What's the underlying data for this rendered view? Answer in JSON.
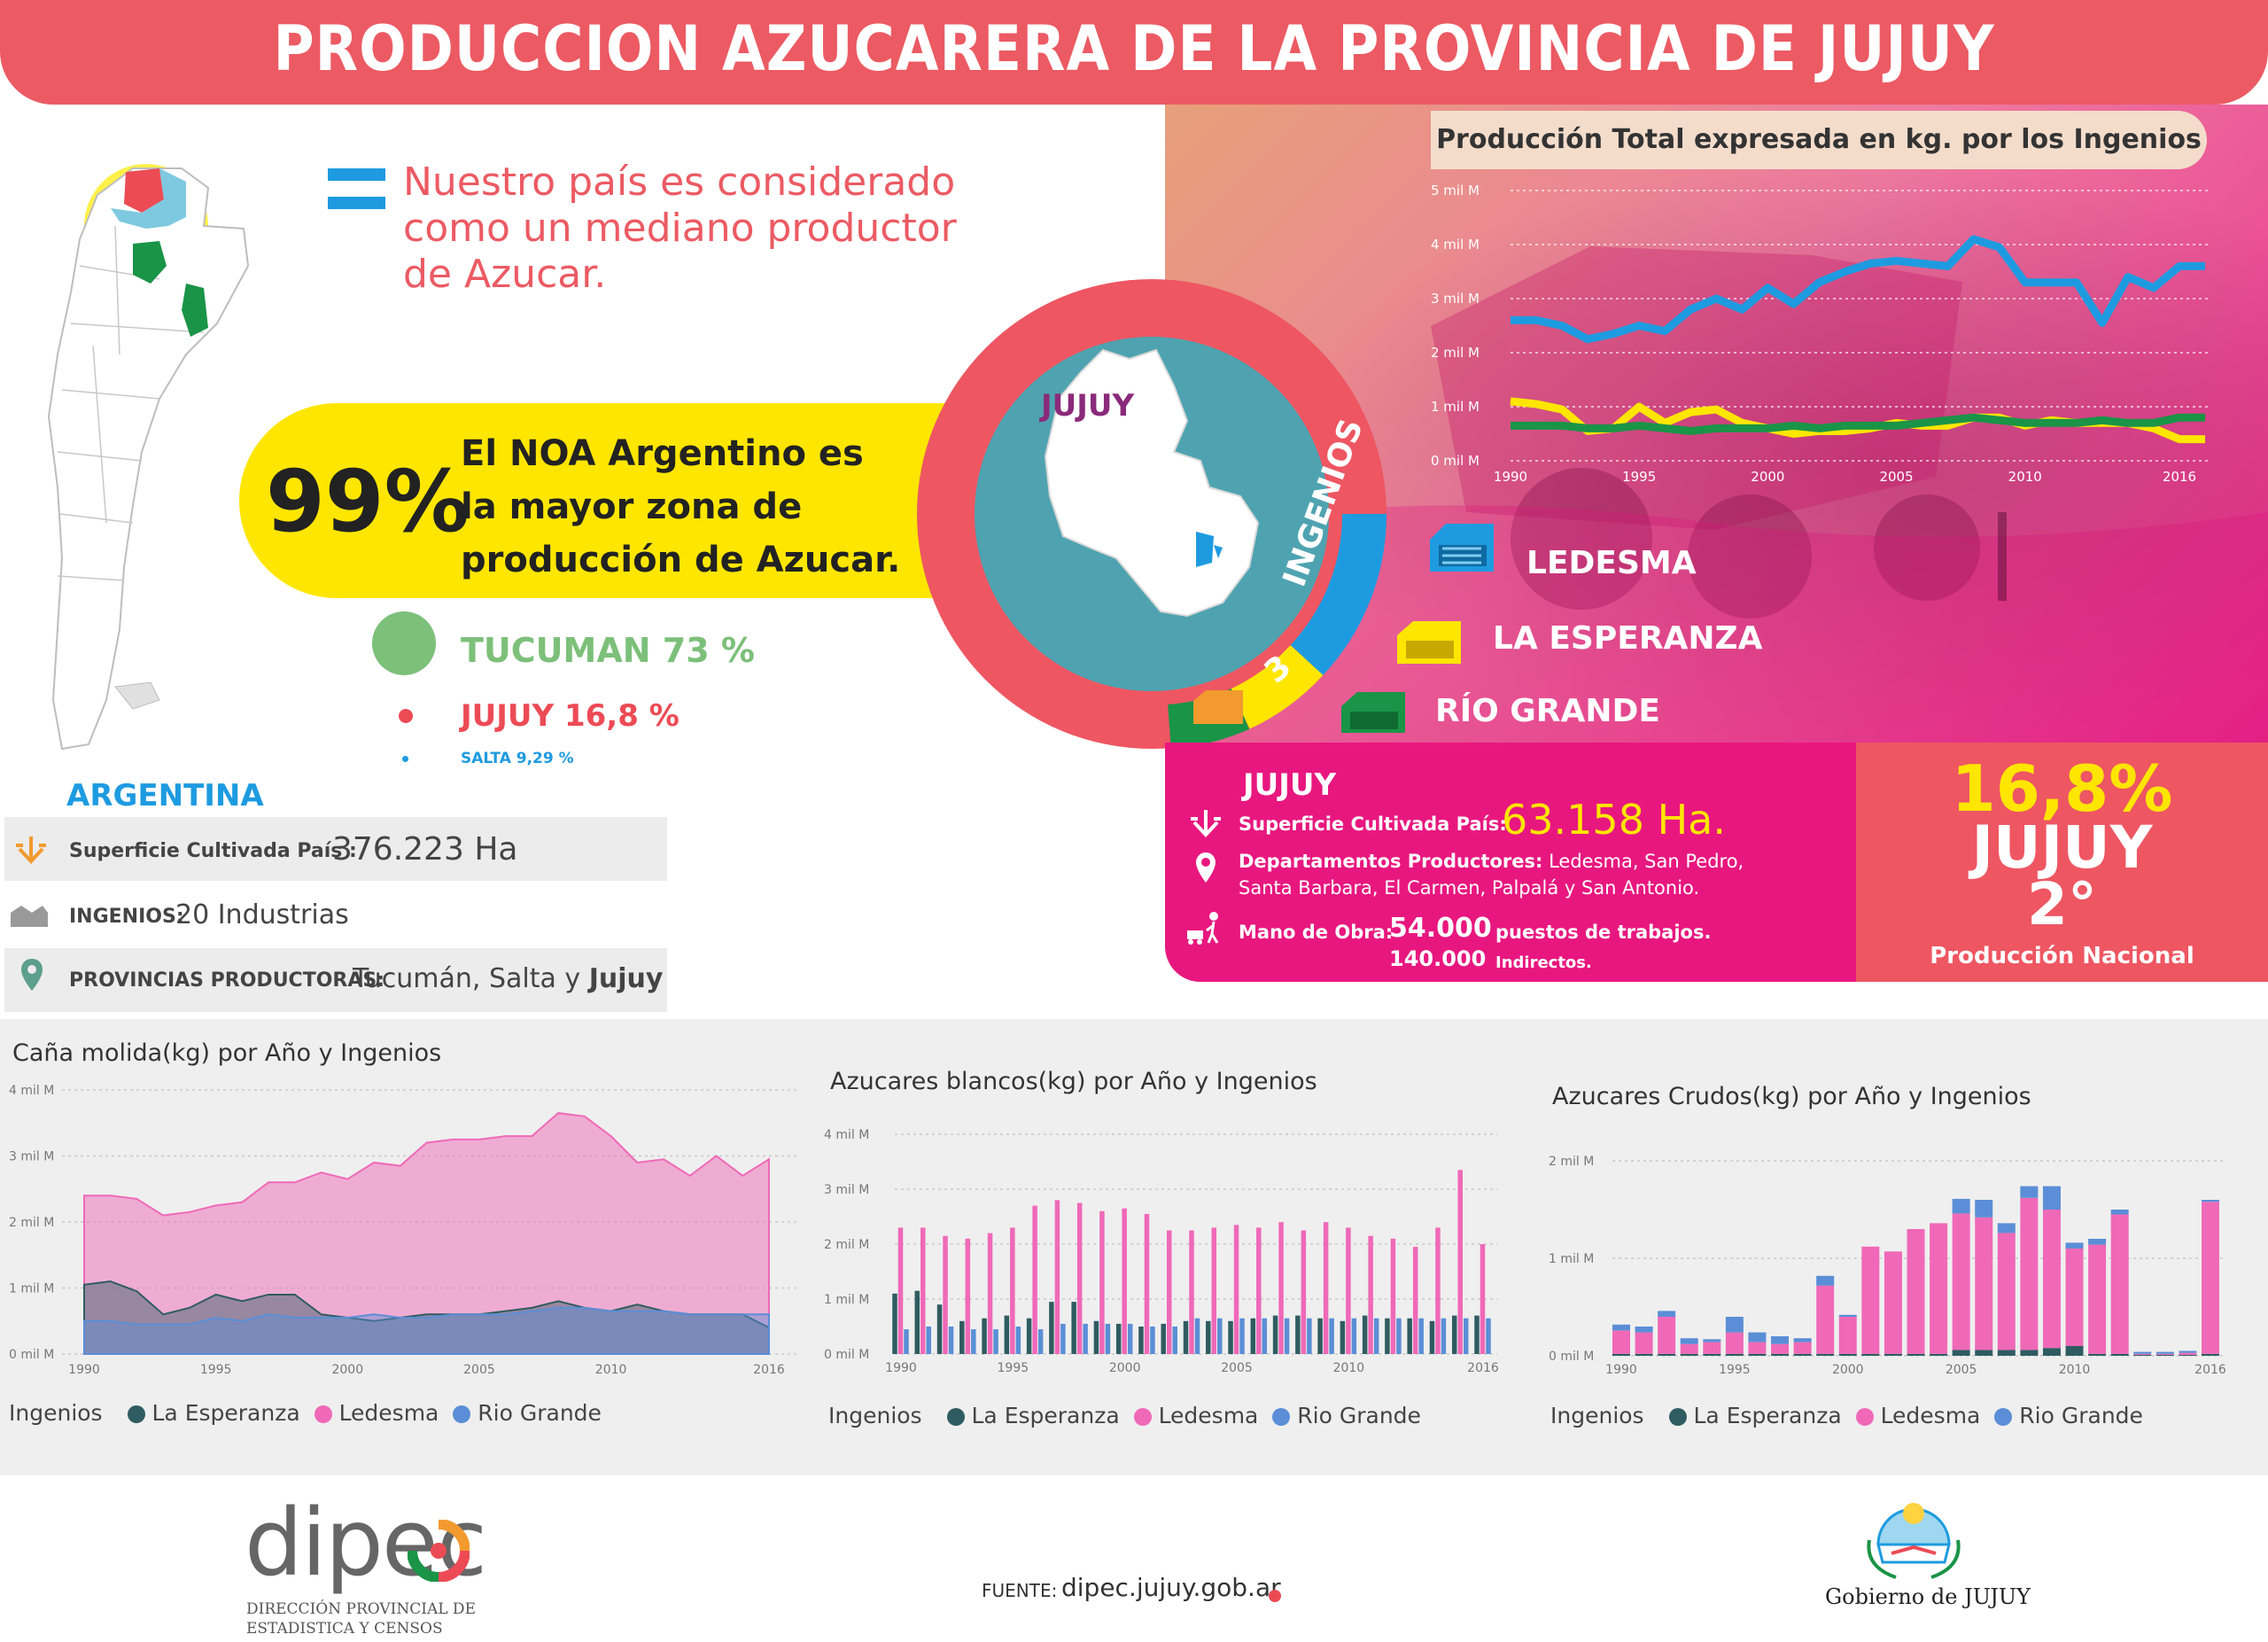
{
  "header": {
    "title": "PRODUCCION AZUCARERA DE LA PROVINCIA DE JUJUY"
  },
  "colors": {
    "banner": "#ec5a63",
    "magenta": "#e8177f",
    "yellow": "#ffe600",
    "blue": "#1e9be0",
    "green": "#1a9447",
    "tucuman_green": "#7cc07a",
    "pink": "#ef69b8",
    "dark_teal": "#2f5c61",
    "ledesma_line": "#1e9be0",
    "esperanza_line": "#ffe600",
    "riogrande_line": "#1a9447"
  },
  "intro": {
    "line1": "Nuestro país es considerado",
    "line2": "como un mediano productor",
    "line3": "de Azucar."
  },
  "noa": {
    "percent": "99%",
    "line1": "El NOA Argentino es",
    "line2": "la mayor zona de",
    "line3": "producción de Azucar."
  },
  "provinces": {
    "tucuman": "TUCUMAN 73 %",
    "jujuy": "JUJUY  16,8 %",
    "salta": "SALTA 9,29 %"
  },
  "argentina": {
    "title": "ARGENTINA",
    "superficie_label": "Superficie Cultivada País :",
    "superficie_value": "376.223 Ha",
    "ingenios_label": "INGENIOS:",
    "ingenios_value": "20 Industrias",
    "provincias_label": "PROVINCIAS PRODUCTORAS:",
    "provincias_value": "Tucumán, Salta y",
    "provincias_bold": "Jujuy"
  },
  "center": {
    "map_label": "JUJUY",
    "ring_number": "3",
    "ring_text": "INGENIOS"
  },
  "ingenios": {
    "ledesma": "LEDESMA",
    "esperanza": "LA ESPERANZA",
    "riogrande": "RÍO GRANDE"
  },
  "jujuy_info": {
    "title": "JUJUY",
    "superficie_label": "Superficie Cultivada País:",
    "superficie_value": "63.158 Ha.",
    "deptos_label": "Departamentos Productores:",
    "deptos_value_1": "Ledesma, San Pedro,",
    "deptos_value_2": "Santa Barbara, El Carmen, Palpalá y San Antonio.",
    "mano_label": "Mano de Obra:",
    "mano_value_1": "54.000",
    "mano_text_1": "puestos de trabajos.",
    "mano_value_2": "140.000",
    "mano_text_2": "Indirectos."
  },
  "ranking": {
    "percent": "16,8%",
    "province": "JUJUY",
    "rank": "2°",
    "caption": "Producción Nacional"
  },
  "footer": {
    "logo": "dipec",
    "org_line1": "DIRECCIÓN PROVINCIAL DE",
    "org_line2": "ESTADISTICA Y CENSOS",
    "source_label": "FUENTE:",
    "source_value": "dipec.jujuy.gob.ar",
    "gov": "Gobierno de JUJUY"
  },
  "chart_data": [
    {
      "type": "line",
      "title": "Producción Total expresada en kg. por los Ingenios",
      "x": [
        1990,
        1991,
        1992,
        1993,
        1994,
        1995,
        1996,
        1997,
        1998,
        1999,
        2000,
        2001,
        2002,
        2003,
        2004,
        2005,
        2006,
        2007,
        2008,
        2009,
        2010,
        2011,
        2012,
        2013,
        2014,
        2015,
        2016,
        2017
      ],
      "x_tick_labels": [
        "1990",
        "1995",
        "2000",
        "2005",
        "2010",
        "2016"
      ],
      "y_tick_labels": [
        "0 mil M",
        "1 mil M",
        "2 mil M",
        "3 mil M",
        "4 mil M",
        "5 mil M"
      ],
      "ylim": [
        0,
        5000000000
      ],
      "series": [
        {
          "name": "LEDESMA",
          "values": [
            2600000000,
            2600000000,
            2500000000,
            2250000000,
            2350000000,
            2500000000,
            2400000000,
            2800000000,
            3000000000,
            2800000000,
            3200000000,
            2900000000,
            3300000000,
            3500000000,
            3650000000,
            3700000000,
            3650000000,
            3600000000,
            4100000000,
            3950000000,
            3300000000,
            3300000000,
            3300000000,
            2550000000,
            3400000000,
            3200000000,
            3600000000,
            3600000000
          ]
        },
        {
          "name": "LA ESPERANZA",
          "values": [
            1100000000,
            1050000000,
            950000000,
            550000000,
            600000000,
            1000000000,
            700000000,
            900000000,
            950000000,
            700000000,
            600000000,
            500000000,
            550000000,
            550000000,
            600000000,
            700000000,
            650000000,
            650000000,
            800000000,
            800000000,
            650000000,
            750000000,
            700000000,
            700000000,
            700000000,
            600000000,
            400000000,
            400000000
          ]
        },
        {
          "name": "RÍO GRANDE",
          "values": [
            650000000,
            650000000,
            650000000,
            600000000,
            600000000,
            650000000,
            600000000,
            550000000,
            600000000,
            600000000,
            600000000,
            650000000,
            600000000,
            650000000,
            650000000,
            650000000,
            700000000,
            750000000,
            800000000,
            750000000,
            700000000,
            700000000,
            700000000,
            750000000,
            700000000,
            700000000,
            800000000,
            800000000
          ]
        }
      ]
    },
    {
      "type": "area",
      "title": "Caña molida(kg) por Año y Ingenios",
      "x": [
        1990,
        1991,
        1992,
        1993,
        1994,
        1995,
        1996,
        1997,
        1998,
        1999,
        2000,
        2001,
        2002,
        2003,
        2004,
        2005,
        2006,
        2007,
        2008,
        2009,
        2010,
        2011,
        2012,
        2013,
        2014,
        2015,
        2016
      ],
      "x_tick_labels": [
        "1990",
        "1995",
        "2000",
        "2005",
        "2010",
        "2016"
      ],
      "y_tick_labels": [
        "0 mil M",
        "1 mil M",
        "2 mil M",
        "3 mil M",
        "4 mil M"
      ],
      "ylim": [
        0,
        4000000000
      ],
      "legend_title": "Ingenios",
      "series": [
        {
          "name": "La Esperanza",
          "values": [
            1050000000,
            1100000000,
            950000000,
            600000000,
            700000000,
            900000000,
            800000000,
            900000000,
            900000000,
            600000000,
            550000000,
            500000000,
            550000000,
            600000000,
            600000000,
            600000000,
            650000000,
            700000000,
            800000000,
            700000000,
            650000000,
            750000000,
            650000000,
            600000000,
            600000000,
            600000000,
            400000000
          ]
        },
        {
          "name": "Ledesma",
          "values": [
            2400000000,
            2400000000,
            2350000000,
            2100000000,
            2150000000,
            2250000000,
            2300000000,
            2600000000,
            2600000000,
            2750000000,
            2650000000,
            2900000000,
            2850000000,
            3200000000,
            3250000000,
            3250000000,
            3300000000,
            3300000000,
            3650000000,
            3600000000,
            3300000000,
            2900000000,
            2950000000,
            2700000000,
            3000000000,
            2700000000,
            2950000000
          ]
        },
        {
          "name": "Rio Grande",
          "values": [
            500000000,
            500000000,
            450000000,
            450000000,
            450000000,
            550000000,
            500000000,
            600000000,
            550000000,
            550000000,
            550000000,
            600000000,
            550000000,
            550000000,
            600000000,
            600000000,
            600000000,
            650000000,
            700000000,
            700000000,
            650000000,
            650000000,
            650000000,
            600000000,
            600000000,
            600000000,
            600000000
          ]
        }
      ]
    },
    {
      "type": "bar",
      "title": "Azucares blancos(kg) por Año y Ingenios",
      "categories": [
        "1990",
        "1991",
        "1992",
        "1993",
        "1994",
        "1995",
        "1996",
        "1997",
        "1998",
        "1999",
        "2000",
        "2001",
        "2002",
        "2003",
        "2004",
        "2005",
        "2006",
        "2007",
        "2008",
        "2009",
        "2010",
        "2011",
        "2012",
        "2013",
        "2014",
        "2015",
        "2016"
      ],
      "x_tick_labels": [
        "1990",
        "1995",
        "2000",
        "2005",
        "2010",
        "2016"
      ],
      "y_tick_labels": [
        "0 mil M",
        "1 mil M",
        "2 mil M",
        "3 mil M",
        "4 mil M"
      ],
      "ylim": [
        0,
        4000000000
      ],
      "legend_title": "Ingenios",
      "series": [
        {
          "name": "La Esperanza",
          "values": [
            1100000000,
            1150000000,
            900000000,
            600000000,
            650000000,
            700000000,
            650000000,
            950000000,
            950000000,
            600000000,
            550000000,
            500000000,
            550000000,
            600000000,
            600000000,
            600000000,
            650000000,
            700000000,
            700000000,
            650000000,
            600000000,
            700000000,
            650000000,
            650000000,
            600000000,
            700000000,
            700000000
          ]
        },
        {
          "name": "Ledesma",
          "values": [
            2300000000,
            2300000000,
            2150000000,
            2100000000,
            2200000000,
            2300000000,
            2700000000,
            2800000000,
            2750000000,
            2600000000,
            2650000000,
            2550000000,
            2250000000,
            2250000000,
            2300000000,
            2350000000,
            2300000000,
            2400000000,
            2250000000,
            2400000000,
            2300000000,
            2150000000,
            2100000000,
            1950000000,
            2300000000,
            3350000000,
            2000000000
          ]
        },
        {
          "name": "Rio Grande",
          "values": [
            450000000,
            500000000,
            500000000,
            450000000,
            450000000,
            500000000,
            450000000,
            550000000,
            550000000,
            550000000,
            550000000,
            500000000,
            500000000,
            650000000,
            650000000,
            650000000,
            650000000,
            650000000,
            650000000,
            650000000,
            650000000,
            650000000,
            650000000,
            650000000,
            650000000,
            650000000,
            650000000
          ]
        }
      ]
    },
    {
      "type": "bar",
      "title": "Azucares Crudos(kg) por Año y Ingenios",
      "categories": [
        "1990",
        "1991",
        "1992",
        "1993",
        "1994",
        "1995",
        "1996",
        "1997",
        "1998",
        "1999",
        "2000",
        "2001",
        "2002",
        "2003",
        "2004",
        "2005",
        "2006",
        "2007",
        "2008",
        "2009",
        "2010",
        "2011",
        "2012",
        "2013",
        "2014",
        "2015",
        "2016"
      ],
      "x_tick_labels": [
        "1990",
        "1995",
        "2000",
        "2005",
        "2010",
        "2016"
      ],
      "y_tick_labels": [
        "0 mil M",
        "1 mil M",
        "2 mil M"
      ],
      "ylim": [
        0,
        2000000000
      ],
      "legend_title": "Ingenios",
      "stacked": true,
      "series": [
        {
          "name": "La Esperanza",
          "values": [
            20000000,
            20000000,
            20000000,
            20000000,
            20000000,
            20000000,
            20000000,
            20000000,
            20000000,
            20000000,
            20000000,
            20000000,
            20000000,
            20000000,
            20000000,
            60000000,
            60000000,
            60000000,
            60000000,
            80000000,
            100000000,
            20000000,
            20000000,
            10000000,
            10000000,
            10000000,
            20000000
          ]
        },
        {
          "name": "Ledesma",
          "values": [
            240000000,
            220000000,
            380000000,
            100000000,
            120000000,
            220000000,
            120000000,
            100000000,
            120000000,
            700000000,
            380000000,
            1100000000,
            1050000000,
            1280000000,
            1340000000,
            1400000000,
            1360000000,
            1200000000,
            1560000000,
            1420000000,
            1000000000,
            1120000000,
            1430000000,
            10000000,
            10000000,
            20000000,
            1560000000
          ]
        },
        {
          "name": "Rio Grande",
          "values": [
            60000000,
            60000000,
            60000000,
            60000000,
            30000000,
            160000000,
            100000000,
            80000000,
            40000000,
            100000000,
            20000000,
            0,
            0,
            0,
            0,
            150000000,
            180000000,
            100000000,
            120000000,
            240000000,
            60000000,
            60000000,
            50000000,
            20000000,
            20000000,
            20000000,
            20000000
          ]
        }
      ]
    }
  ]
}
